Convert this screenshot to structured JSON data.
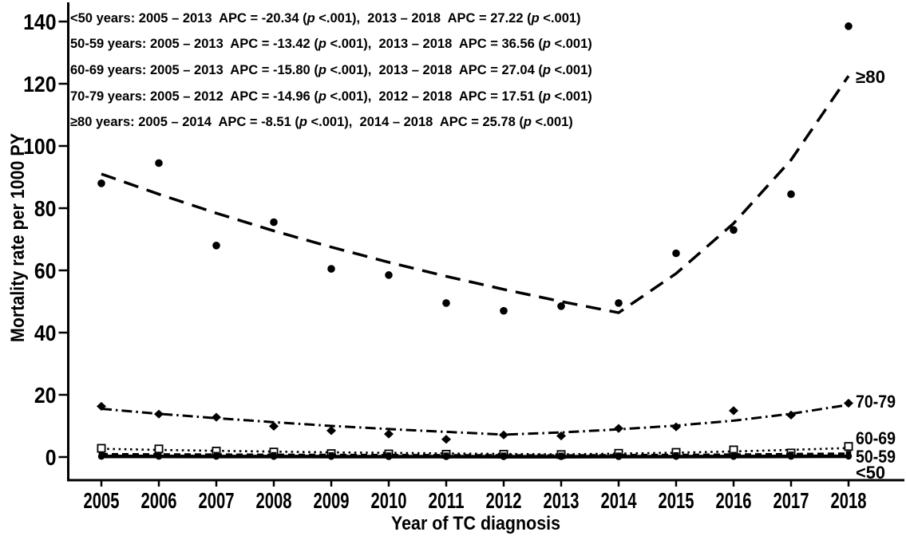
{
  "figure": {
    "background": "#ffffff",
    "ink_color": "#000000"
  },
  "chart_data": {
    "type": "line",
    "title": "",
    "xlabel": "Year of TC diagnosis",
    "ylabel": "Mortality rate per 1000 PY",
    "x": [
      2005,
      2006,
      2007,
      2008,
      2009,
      2010,
      2011,
      2012,
      2013,
      2014,
      2015,
      2016,
      2017,
      2018
    ],
    "x_tick_labels": [
      "2005",
      "2006",
      "2007",
      "2008",
      "2009",
      "2010",
      "2011",
      "2012",
      "2013",
      "2014",
      "2015",
      "2016",
      "2017",
      "2018"
    ],
    "yticks": [
      0,
      20,
      40,
      60,
      80,
      100,
      120,
      140
    ],
    "ylim": [
      0,
      145
    ],
    "grid": false,
    "legend_position": "right-end-of-line-labels",
    "annotations": [
      "<50 years: 2005 – 2013  APC = -20.34 (p <.001),  2013 – 2018  APC = 27.22 (p <.001)",
      "50-59 years: 2005 – 2013  APC = -13.42 (p <.001),  2013 – 2018  APC = 36.56 (p <.001)",
      "60-69 years: 2005 – 2013  APC = -15.80 (p <.001),  2013 – 2018  APC = 27.04 (p <.001)",
      "70-79 years: 2005 – 2012  APC = -14.96 (p <.001),  2012 – 2018  APC = 17.51 (p <.001)",
      "≥80 years: 2005 – 2014  APC = -8.51 (p <.001),  2014 – 2018  APC = 25.78 (p <.001)"
    ],
    "series": [
      {
        "name": "age-80-plus",
        "label": "≥80",
        "marker": "filled-circle",
        "line_style": "long-dash",
        "observed": [
          88,
          94.5,
          68,
          75.5,
          60.5,
          58.5,
          49.5,
          47,
          48.5,
          49.5,
          65.5,
          73,
          84.5,
          138.5
        ],
        "fitted": [
          91,
          84.5,
          78.4,
          72.7,
          67.5,
          62.6,
          58.1,
          53.9,
          50.0,
          46.4,
          59.0,
          75.1,
          95.5,
          122.5
        ]
      },
      {
        "name": "age-70-79",
        "label": "70-79",
        "marker": "filled-diamond",
        "line_style": "dash-dot",
        "observed": [
          16.3,
          13.8,
          12.8,
          9.9,
          8.5,
          7.4,
          5.7,
          7.1,
          6.8,
          9.2,
          9.7,
          14.9,
          13.5,
          17.3
        ],
        "fitted": [
          15.5,
          13.9,
          12.5,
          11.2,
          10.0,
          9.0,
          8.1,
          7.2,
          7.9,
          8.9,
          10.1,
          11.7,
          13.9,
          16.8
        ]
      },
      {
        "name": "age-60-69",
        "label": "60-69",
        "marker": "open-square",
        "line_style": "dotted",
        "observed": [
          2.8,
          2.6,
          1.9,
          1.6,
          1.1,
          1.0,
          0.9,
          0.9,
          0.8,
          1.2,
          1.5,
          2.3,
          1.3,
          3.4
        ],
        "fitted": [
          2.65,
          2.3,
          2.0,
          1.75,
          1.5,
          1.35,
          1.15,
          1.0,
          0.85,
          1.1,
          1.4,
          1.8,
          2.3,
          2.9
        ]
      },
      {
        "name": "age-50-59",
        "label": "50-59",
        "marker": "filled-square",
        "line_style": "dash",
        "observed": [
          0.9,
          0.85,
          0.8,
          0.75,
          0.7,
          0.65,
          0.6,
          0.6,
          0.55,
          0.6,
          0.7,
          0.8,
          0.9,
          1.1
        ],
        "fitted": [
          0.9,
          0.83,
          0.77,
          0.71,
          0.66,
          0.61,
          0.57,
          0.53,
          0.49,
          0.57,
          0.67,
          0.78,
          0.92,
          1.08
        ]
      },
      {
        "name": "age-under-50",
        "label": "<50",
        "marker": "filled-circle",
        "line_style": "solid",
        "observed": [
          0.2,
          0.2,
          0.2,
          0.15,
          0.15,
          0.1,
          0.1,
          0.1,
          0.1,
          0.1,
          0.15,
          0.15,
          0.2,
          0.25
        ],
        "fitted": [
          0.2,
          0.18,
          0.17,
          0.15,
          0.14,
          0.13,
          0.12,
          0.11,
          0.1,
          0.12,
          0.14,
          0.17,
          0.2,
          0.24
        ]
      }
    ]
  }
}
